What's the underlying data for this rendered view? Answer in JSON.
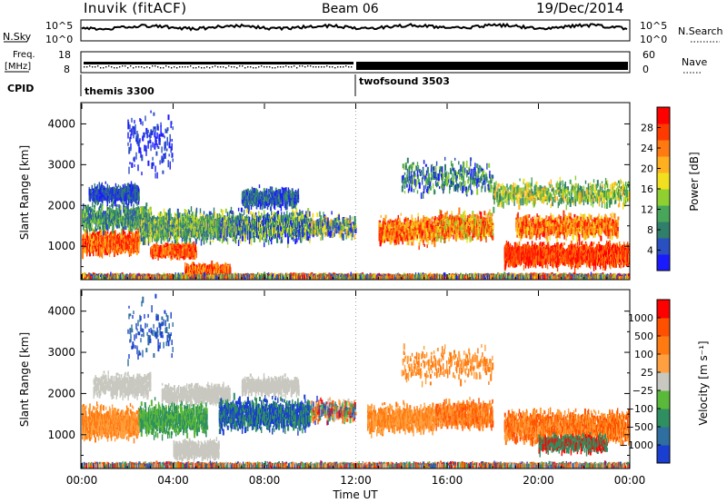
{
  "header": {
    "station": "Inuvik (fitACF)",
    "beam": "Beam 06",
    "date": "19/Dec/2014"
  },
  "top_panel": {
    "left_label": "N.Sky",
    "right_label": "N.Search",
    "left_ticks": [
      "10^5",
      "10^0"
    ],
    "right_ticks": [
      "10^5",
      "10^0"
    ]
  },
  "freq_panel": {
    "left_label_line1": "Freq.",
    "left_label_line2": "[MHz]",
    "left_ticks": [
      "18",
      "8"
    ],
    "right_label": "Nave",
    "right_ticks": [
      "60",
      "0"
    ]
  },
  "cpid": {
    "label": "CPID",
    "modes": [
      {
        "name": "themis 3300",
        "start_hour": 0
      },
      {
        "name": "twofsound 3503",
        "start_hour": 12
      }
    ]
  },
  "chart_data": [
    {
      "type": "heatmap",
      "title": "",
      "ylabel": "Slant Range [km]",
      "xlabel": "",
      "x_ticks": [
        "00:00",
        "04:00",
        "08:00",
        "12:00",
        "16:00",
        "20:00",
        "00:00"
      ],
      "y_ticks": [
        "1000",
        "2000",
        "3000",
        "4000"
      ],
      "ylim": [
        180,
        4500
      ],
      "xlim_hours": [
        0,
        24
      ],
      "colorbar": {
        "label": "Power [dB]",
        "ticks": [
          "4",
          "8",
          "12",
          "16",
          "20",
          "24",
          "28"
        ],
        "colors": [
          "#1a1aff",
          "#2a4fc0",
          "#2f7f6a",
          "#48a65a",
          "#8fd030",
          "#f0e020",
          "#ffb020",
          "#ff7a10",
          "#ff3a00",
          "#ff0000"
        ]
      }
    },
    {
      "type": "heatmap",
      "title": "",
      "ylabel": "Slant Range [km]",
      "xlabel": "Time UT",
      "x_ticks": [
        "00:00",
        "04:00",
        "08:00",
        "12:00",
        "16:00",
        "20:00",
        "00:00"
      ],
      "y_ticks": [
        "1000",
        "2000",
        "3000",
        "4000"
      ],
      "ylim": [
        180,
        4500
      ],
      "xlim_hours": [
        0,
        24
      ],
      "colorbar": {
        "label": "Velocity [m s⁻¹]",
        "ticks": [
          "1000",
          "500",
          "100",
          "25",
          "−25",
          "−100",
          "−500",
          "−1000"
        ],
        "colors": [
          "#1a3fd0",
          "#2f6fa0",
          "#2f8f60",
          "#5ab83a",
          "#c8c8c0",
          "#ffa040",
          "#ff7a10",
          "#ff5000",
          "#ff0000"
        ]
      }
    }
  ]
}
